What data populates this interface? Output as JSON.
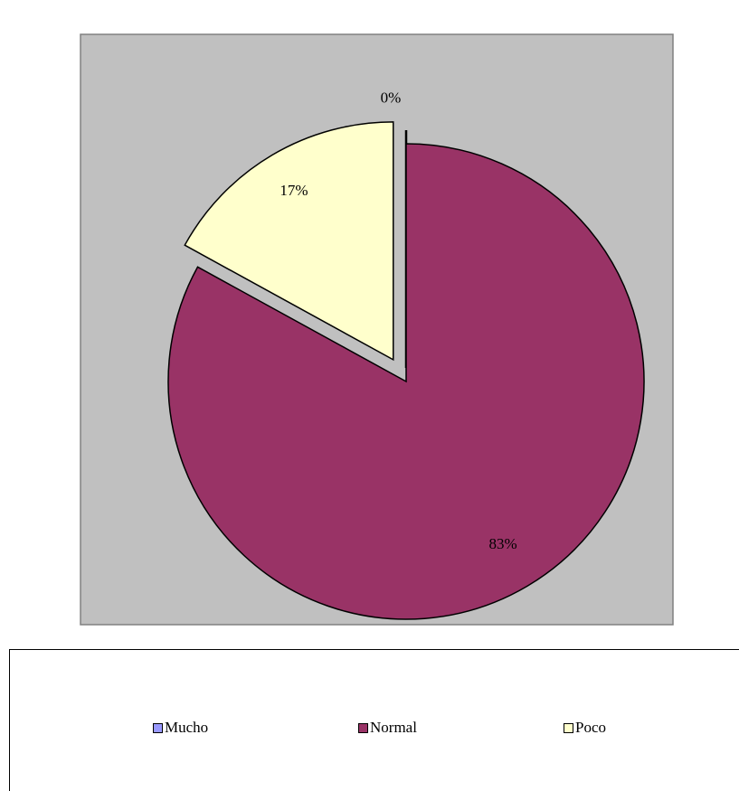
{
  "chart_data": {
    "type": "pie",
    "categories": [
      "Mucho",
      "Normal",
      "Poco"
    ],
    "values": [
      0,
      83,
      17
    ],
    "labels": [
      "0%",
      "83%",
      "17%"
    ],
    "colors": [
      "#9999FF",
      "#993366",
      "#FFFFCC"
    ],
    "exploded": true,
    "start_angle_deg": 0,
    "direction": "clockwise",
    "plot_area_color": "#C0C0C0",
    "legend_position": "bottom"
  }
}
